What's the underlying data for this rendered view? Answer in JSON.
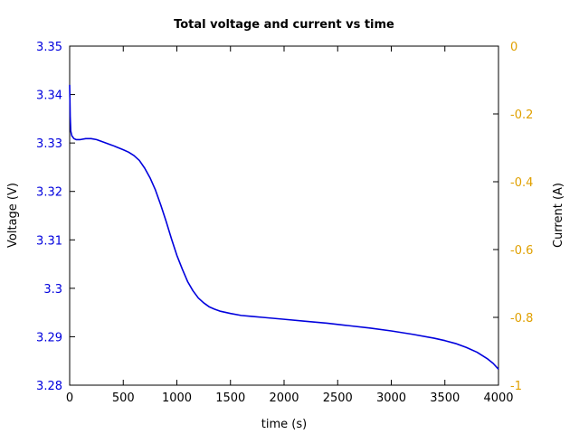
{
  "chart_data": {
    "type": "line",
    "title": "Total voltage and current vs time",
    "xlabel": "time (s)",
    "ylabel": "Voltage (V)",
    "y2label": "Current (A)",
    "xlim": [
      0,
      4000
    ],
    "ylim": [
      3.28,
      3.35
    ],
    "y2lim": [
      -1,
      0
    ],
    "xticks": [
      0,
      500,
      1000,
      1500,
      2000,
      2500,
      3000,
      3500,
      4000
    ],
    "xtick_labels": [
      "0",
      "500",
      "1000",
      "1500",
      "2000",
      "2500",
      "3000",
      "3500",
      "4000"
    ],
    "yticks": [
      3.28,
      3.29,
      3.3,
      3.31,
      3.32,
      3.33,
      3.34,
      3.35
    ],
    "ytick_labels": [
      "3.28",
      "3.29",
      "3.3",
      "3.31",
      "3.32",
      "3.33",
      "3.34",
      "3.35"
    ],
    "y2ticks": [
      0,
      -0.2,
      -0.4,
      -0.6,
      -0.8,
      -1
    ],
    "y2tick_labels": [
      "0",
      "-0.2",
      "-0.4",
      "-0.6",
      "-0.8",
      "-1"
    ],
    "grid": false,
    "colors": {
      "voltage": "#0000dd",
      "current_axis": "#e0a000",
      "axes": "#000000"
    },
    "series": [
      {
        "axis": "left",
        "color": "#0000dd",
        "x": [
          0,
          2,
          5,
          10,
          20,
          40,
          60,
          100,
          150,
          200,
          250,
          300,
          400,
          500,
          550,
          600,
          650,
          700,
          750,
          800,
          850,
          900,
          950,
          1000,
          1050,
          1100,
          1150,
          1200,
          1250,
          1300,
          1350,
          1400,
          1500,
          1600,
          1700,
          1800,
          2000,
          2200,
          2400,
          2600,
          2800,
          3000,
          3200,
          3400,
          3500,
          3600,
          3700,
          3800,
          3900,
          3950,
          4000
        ],
        "y": [
          3.342,
          3.3395,
          3.3355,
          3.3325,
          3.3315,
          3.3309,
          3.3307,
          3.3307,
          3.3309,
          3.3309,
          3.3307,
          3.3303,
          3.3295,
          3.3286,
          3.3281,
          3.3274,
          3.3264,
          3.3248,
          3.3228,
          3.3203,
          3.3172,
          3.3138,
          3.3102,
          3.3068,
          3.304,
          3.3014,
          3.2995,
          3.298,
          3.297,
          3.2962,
          3.2957,
          3.2953,
          3.2948,
          3.2944,
          3.2942,
          3.294,
          3.2936,
          3.2932,
          3.2928,
          3.2923,
          3.2918,
          3.2912,
          3.2905,
          3.2897,
          3.2892,
          3.2886,
          3.2878,
          3.2868,
          3.2854,
          3.2845,
          3.2833
        ]
      }
    ]
  }
}
